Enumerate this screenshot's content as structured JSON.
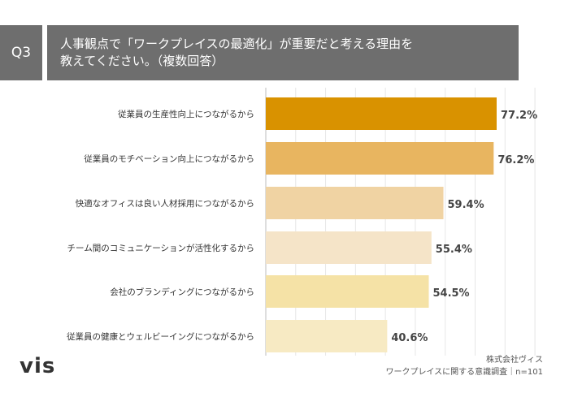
{
  "header": {
    "question_no": "Q3",
    "title_line1": "人事観点で「ワークプレイスの最適化」が重要だと考える理由を",
    "title_line2": "教えてください。（複数回答）"
  },
  "chart_data": {
    "type": "bar",
    "orientation": "horizontal",
    "categories": [
      "従業員の生産性向上につながるから",
      "従業員のモチベーション向上につながるから",
      "快適なオフィスは良い人材採用につながるから",
      "チーム間のコミュニケーションが活性化するから",
      "会社のブランディングにつながるから",
      "従業員の健康とウェルビーイングにつながるから"
    ],
    "values": [
      77.2,
      76.2,
      59.4,
      55.4,
      54.5,
      40.6
    ],
    "value_labels": [
      "77.2%",
      "76.2%",
      "59.4%",
      "55.4%",
      "54.5%",
      "40.6%"
    ],
    "bar_colors": [
      "#d99200",
      "#e8b560",
      "#f0d3a3",
      "#f5e4c8",
      "#f5e2a6",
      "#f7eac3"
    ],
    "xlim": [
      0,
      100
    ],
    "grid": true
  },
  "footer": {
    "logo": "vis",
    "company": "株式会社ヴィス",
    "survey": "ワークプレイスに関する意識調査｜n=101"
  }
}
